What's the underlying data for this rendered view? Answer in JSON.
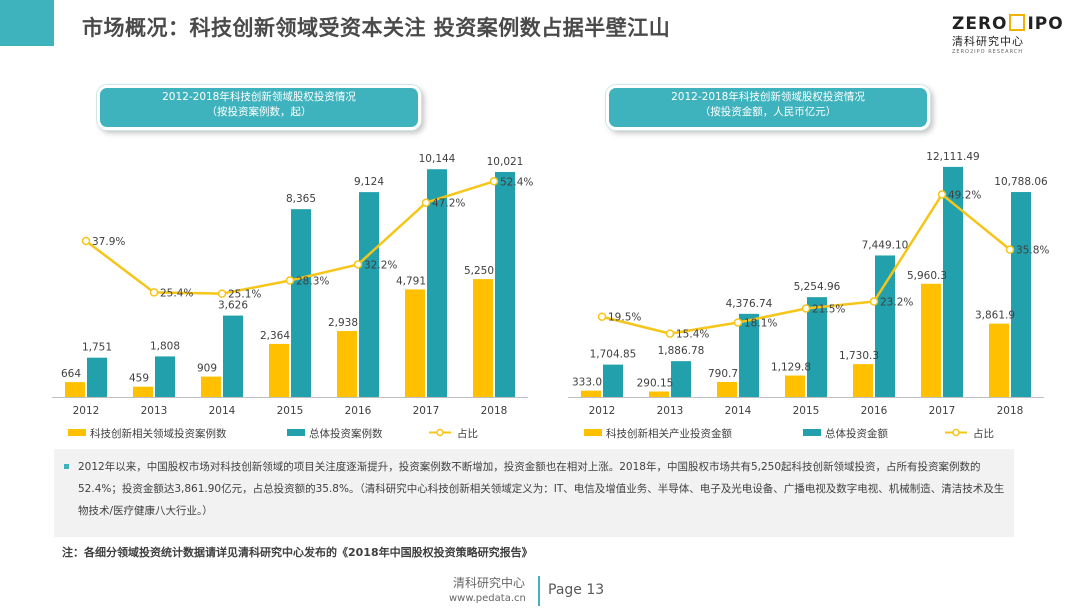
{
  "page": {
    "title": "市场概况：科技创新领域受资本关注 投资案例数占据半壁江山",
    "logo_top": "ZERO",
    "logo_top_end": "IPO",
    "logo_sub": "清科研究中心",
    "logo_tiny": "ZERO2IPO RESEARCH",
    "note": "2012年以来，中国股权市场对科技创新领域的项目关注度逐渐提升，投资案例数不断增加，投资金额也在相对上涨。2018年，中国股权市场共有5,250起科技创新领域投资，占所有投资案例数的52.4%；投资金额达3,861.90亿元，占总投资额的35.8%。（清科研究中心科技创新相关领域定义为：IT、电信及增值业务、半导体、电子及光电设备、广播电视及数字电视、机械制造、清洁技术及生物技术/医疗健康八大行业。）",
    "footnote": "注：各细分领域投资统计数据请详见清科研究中心发布的《2018年中国股权投资策略研究报告》",
    "footer_brand": "清科研究中心",
    "footer_url": "www.pedata.cn",
    "footer_page": "Page 13"
  },
  "colors": {
    "accent": "#3fb3bd",
    "bar_yellow": "#ffc000",
    "bar_teal": "#22a1ad",
    "line": "#f5c518"
  },
  "chart_data": [
    {
      "type": "bar",
      "title": "2012-2018年科技创新领域股权投资情况",
      "subtitle": "（按投资案例数，起）",
      "categories": [
        "2012",
        "2013",
        "2014",
        "2015",
        "2016",
        "2017",
        "2018"
      ],
      "series": [
        {
          "name": "科技创新相关领域投资案例数",
          "values": [
            664,
            459,
            909,
            2364,
            2938,
            4791,
            5250
          ],
          "labels": [
            "664",
            "459",
            "909",
            "2,364",
            "2,938",
            "4,791",
            "5,250"
          ]
        },
        {
          "name": "总体投资案例数",
          "values": [
            1751,
            1808,
            3626,
            8365,
            9124,
            10144,
            10021
          ],
          "labels": [
            "1,751",
            "1,808",
            "3,626",
            "8,365",
            "9,124",
            "10,144",
            "10,021"
          ]
        }
      ],
      "line": {
        "name": "占比",
        "values": [
          37.9,
          25.4,
          25.1,
          28.3,
          32.2,
          47.2,
          52.4
        ],
        "labels": [
          "37.9%",
          "25.4%",
          "25.1%",
          "28.3%",
          "32.2%",
          "47.2%",
          "52.4%"
        ]
      },
      "ylim": [
        0,
        11000
      ],
      "line_ylim": [
        0,
        60
      ]
    },
    {
      "type": "bar",
      "title": "2012-2018年科技创新领域股权投资情况",
      "subtitle": "（按投资金额，人民币亿元）",
      "categories": [
        "2012",
        "2013",
        "2014",
        "2015",
        "2016",
        "2017",
        "2018"
      ],
      "series": [
        {
          "name": "科技创新相关产业投资金额",
          "values": [
            333.0,
            290.15,
            790.7,
            1129.8,
            1730.3,
            5960.3,
            3861.9
          ],
          "labels": [
            "333.0",
            "290.15",
            "790.7",
            "1,129.8",
            "1,730.3",
            "5,960.3",
            "3,861.9"
          ]
        },
        {
          "name": "总体投资金额",
          "values": [
            1704.85,
            1886.78,
            4376.74,
            5254.96,
            7449.1,
            12111.49,
            10788.06
          ],
          "labels": [
            "1,704.85",
            "1,886.78",
            "4,376.74",
            "5,254.96",
            "7,449.10",
            "12,111.49",
            "10,788.06"
          ]
        }
      ],
      "line": {
        "name": "占比",
        "values": [
          19.5,
          15.4,
          18.1,
          21.5,
          23.2,
          49.2,
          35.8
        ],
        "labels": [
          "19.5%",
          "15.4%",
          "18.1%",
          "21.5%",
          "23.2%",
          "49.2%",
          "35.8%"
        ]
      },
      "ylim": [
        0,
        13000
      ],
      "line_ylim": [
        0,
        60
      ]
    }
  ]
}
